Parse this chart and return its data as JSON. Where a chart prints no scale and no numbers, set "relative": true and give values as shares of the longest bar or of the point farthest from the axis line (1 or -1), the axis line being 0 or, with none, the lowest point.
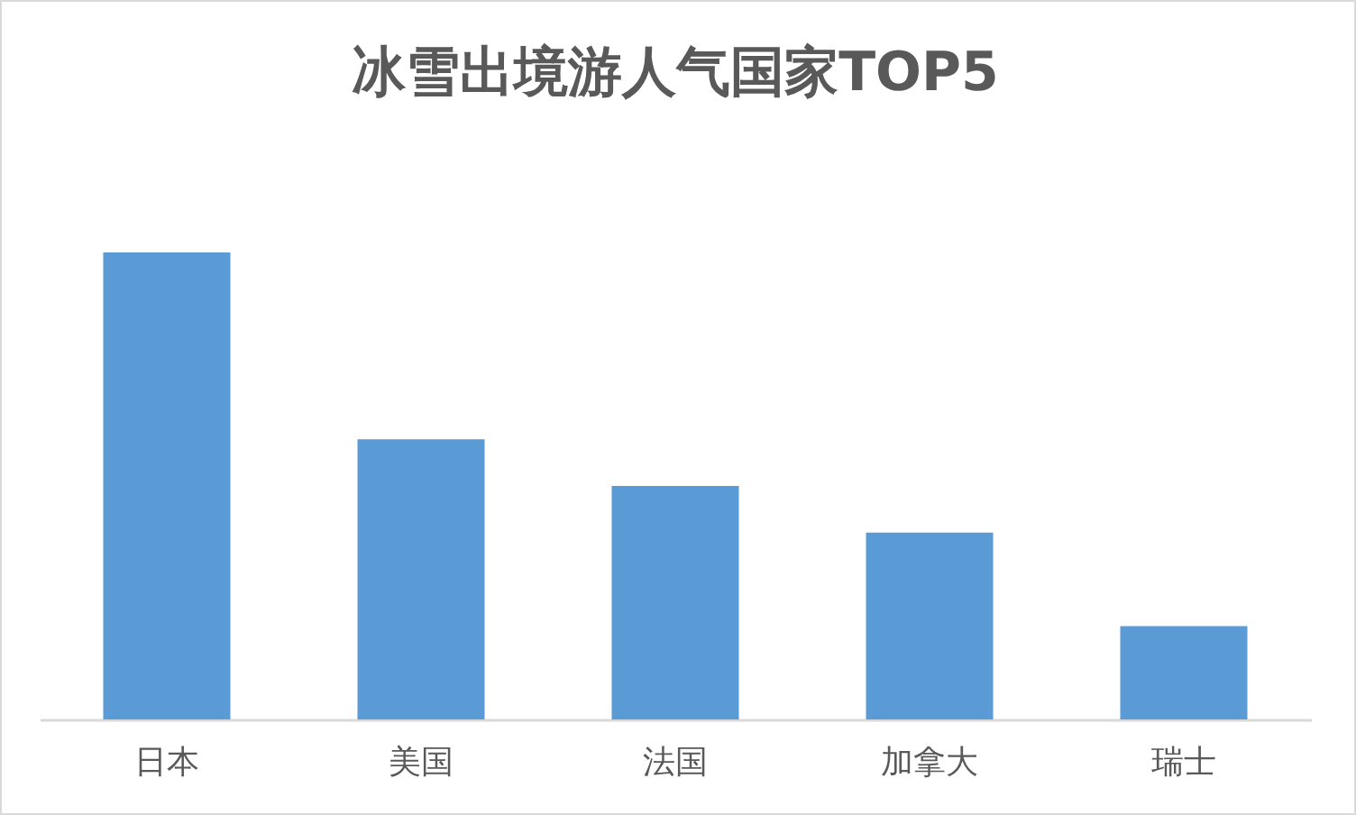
{
  "chart_data": {
    "type": "bar",
    "title": "冰雪出境游人气国家TOP5",
    "categories": [
      "日本",
      "美国",
      "法国",
      "加拿大",
      "瑞士"
    ],
    "values": [
      1,
      0.6,
      0.5,
      0.4,
      0.2
    ],
    "relative": true,
    "color": "#5b9bd5"
  }
}
